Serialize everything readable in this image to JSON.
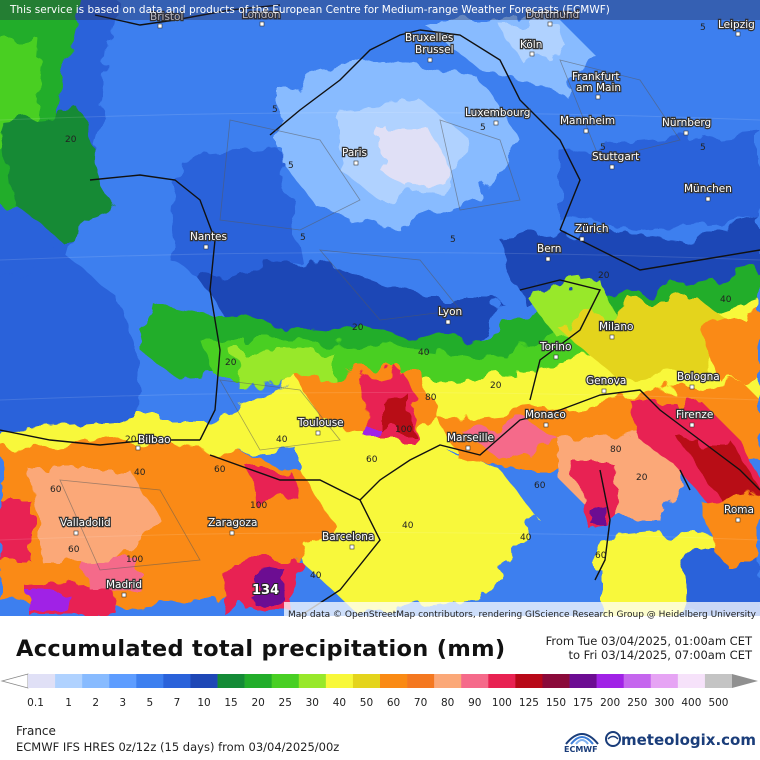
{
  "banner": "This service is based on data and products of the European Centre for Medium-range Weather Forecasts (ECMWF)",
  "attribution": "Map data © OpenStreetMap contributors, rendering GIScience Research Group @ Heidelberg University",
  "title": "Accumulated total precipitation (mm)",
  "period_from": "From Tue 03/04/2025, 01:00am CET",
  "period_to": "to Fri 03/14/2025, 07:00am CET",
  "region": "France",
  "model": "ECMWF IFS HRES 0z/12z (15 days)  from  03/04/2025/00z",
  "ecmwf_logo_text": "ECMWF",
  "brand": "meteologix.com",
  "legend": {
    "labels": [
      "0.1",
      "1",
      "2",
      "3",
      "5",
      "7",
      "10",
      "15",
      "20",
      "25",
      "30",
      "40",
      "50",
      "60",
      "70",
      "80",
      "90",
      "100",
      "125",
      "150",
      "175",
      "200",
      "250",
      "300",
      "400",
      "500"
    ],
    "colors": [
      "#e0e0f6",
      "#b0d2ff",
      "#88bbff",
      "#5e9dff",
      "#3d7fef",
      "#2a62da",
      "#1e47b6",
      "#148a36",
      "#22ad2a",
      "#48cf24",
      "#98e82a",
      "#f8f83a",
      "#e4d41c",
      "#fa8a14",
      "#f47820",
      "#fba878",
      "#f56a8a",
      "#e82252",
      "#b80818",
      "#8a0a3a",
      "#6c0c92",
      "#a022e6",
      "#c566ee",
      "#e6a4f4",
      "#f6e2fa",
      "#c4c4c4"
    ]
  },
  "cities": [
    {
      "name": "Bristol"
    },
    {
      "name": "London"
    },
    {
      "name": "Bruxelles"
    },
    {
      "name": "Brussel"
    },
    {
      "name": "Dortmund"
    },
    {
      "name": "Leipzig"
    },
    {
      "name": "Köln"
    },
    {
      "name": "Frankfurt"
    },
    {
      "name": "am Main"
    },
    {
      "name": "Luxembourg"
    },
    {
      "name": "Mannheim"
    },
    {
      "name": "Nürnberg"
    },
    {
      "name": "Paris"
    },
    {
      "name": "Stuttgart"
    },
    {
      "name": "München"
    },
    {
      "name": "Nantes"
    },
    {
      "name": "Zürich"
    },
    {
      "name": "Bern"
    },
    {
      "name": "Lyon"
    },
    {
      "name": "Milano"
    },
    {
      "name": "Torino"
    },
    {
      "name": "Genova"
    },
    {
      "name": "Bologna"
    },
    {
      "name": "Toulouse"
    },
    {
      "name": "Monaco"
    },
    {
      "name": "Firenze"
    },
    {
      "name": "Bilbao"
    },
    {
      "name": "Marseille"
    },
    {
      "name": "Valladolid"
    },
    {
      "name": "Zaragoza"
    },
    {
      "name": "Roma"
    },
    {
      "name": "Barcelona"
    },
    {
      "name": "Madrid"
    }
  ],
  "isolines": [
    "5",
    "5",
    "5",
    "5",
    "5",
    "5",
    "5",
    "5",
    "20",
    "20",
    "20",
    "20",
    "20",
    "40",
    "40",
    "40",
    "40",
    "40",
    "60",
    "60",
    "60",
    "60",
    "60",
    "80",
    "80",
    "100",
    "100",
    "100",
    "20",
    "40",
    "40",
    "60",
    "20"
  ],
  "peak_value": "134"
}
